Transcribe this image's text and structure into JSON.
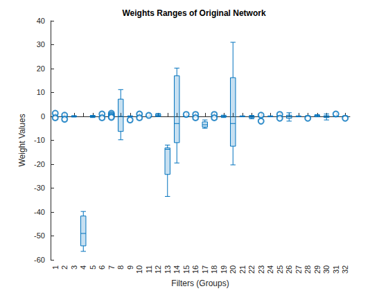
{
  "chart_data": {
    "type": "boxplot",
    "title": "Weights Ranges of Original Network",
    "x_label": "Filters (Groups)",
    "y_label": "Weight Values",
    "categories": [
      "1",
      "2",
      "3",
      "4",
      "5",
      "6",
      "7",
      "8",
      "9",
      "10",
      "11",
      "12",
      "13",
      "14",
      "15",
      "16",
      "17",
      "18",
      "19",
      "20",
      "21",
      "22",
      "23",
      "24",
      "25",
      "26",
      "27",
      "28",
      "29",
      "30",
      "31",
      "32"
    ],
    "values": [
      [
        -0.2,
        -0.1,
        0,
        0.1,
        0.2
      ],
      [
        -0.2,
        -0.1,
        0,
        0.1,
        0.2
      ],
      [
        -0.3,
        -0.1,
        0,
        0.1,
        0.3
      ],
      [
        -56.5,
        -54.2,
        -49,
        -41.7,
        -39.8
      ],
      [
        -0.5,
        -0.3,
        0,
        0.2,
        0.4
      ],
      [
        -0.2,
        -0.1,
        0,
        0.1,
        0.2
      ],
      [
        -0.2,
        -0.1,
        0,
        0.1,
        0.2
      ],
      [
        -9.8,
        -6.3,
        0,
        7.2,
        11.2
      ],
      [
        -0.2,
        -0.1,
        0,
        0.1,
        0.2
      ],
      [
        -0.2,
        -0.1,
        0,
        0.1,
        0.2
      ],
      [
        -0.2,
        -0.1,
        0,
        0.1,
        0.2
      ],
      [
        -0.1,
        0.1,
        0.5,
        0.9,
        1.2
      ],
      [
        -33.5,
        -24.3,
        -13.8,
        -13.2,
        -12
      ],
      [
        -19.5,
        -11,
        -3,
        17,
        20.2
      ],
      [
        -0.2,
        -0.1,
        0,
        0.1,
        0.2
      ],
      [
        -0.2,
        -0.1,
        0,
        0.1,
        0.2
      ],
      [
        -5,
        -4.5,
        -3.5,
        -2.3,
        -1.5
      ],
      [
        -0.2,
        -0.1,
        0,
        0.1,
        0.2
      ],
      [
        -0.5,
        -0.2,
        0,
        0.3,
        0.5
      ],
      [
        -20.3,
        -12.5,
        -3,
        16.2,
        31
      ],
      [
        -0.2,
        -0.1,
        0,
        0.1,
        0.2
      ],
      [
        -1,
        -0.6,
        -0.3,
        0.1,
        0.4
      ],
      [
        -0.2,
        -0.1,
        0,
        0.1,
        0.2
      ],
      [
        -0.2,
        -0.1,
        0,
        0.1,
        0.2
      ],
      [
        -0.2,
        -0.1,
        0,
        0.1,
        0.2
      ],
      [
        -2,
        -0.8,
        0,
        0.5,
        1.5
      ],
      [
        -0.2,
        -0.1,
        0,
        0.1,
        0.2
      ],
      [
        -0.2,
        -0.1,
        0,
        0.1,
        0.2
      ],
      [
        -0.2,
        0,
        0.3,
        0.5,
        0.7
      ],
      [
        -1.5,
        -0.5,
        0,
        0.3,
        1
      ],
      [
        -0.2,
        -0.1,
        0,
        0.1,
        0.2
      ],
      [
        -0.2,
        -0.1,
        0,
        0.1,
        0.2
      ]
    ],
    "outliers": [
      [
        1.3,
        -0.6
      ],
      [
        0.5,
        -1.2
      ],
      [],
      [],
      [],
      [
        1,
        -0.6
      ],
      [
        1.3,
        0.6,
        0,
        -0.4
      ],
      [],
      [
        -1.5
      ],
      [
        1,
        -0.6
      ],
      [
        0.4
      ],
      [],
      [],
      [],
      [
        0.8
      ],
      [
        0.8,
        -0.6
      ],
      [],
      [
        0.8,
        -0.6
      ],
      [],
      [],
      [],
      [],
      [
        0.5,
        -2
      ],
      [],
      [
        0.8,
        -0.8
      ],
      [],
      [],
      [
        -0.8
      ],
      [],
      [],
      [
        1
      ],
      [
        -0.8
      ]
    ],
    "color": "#0072bd",
    "ylim": [
      -60,
      40
    ],
    "yticks": [
      -60,
      -50,
      -40,
      -30,
      -20,
      -10,
      0,
      10,
      20,
      30,
      40
    ],
    "grid": false
  }
}
